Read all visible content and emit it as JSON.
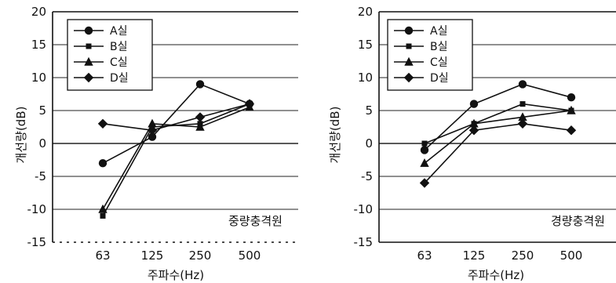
{
  "chart_data": [
    {
      "type": "line",
      "categories": [
        "63",
        "125",
        "250",
        "500"
      ],
      "ylim": [
        -15,
        20
      ],
      "yticks": [
        "20",
        "15",
        "10",
        "5",
        "0",
        "-5",
        "-10",
        "-15"
      ],
      "xlabel": "주파수(Hz)",
      "ylabel": "개선량(dB)",
      "annotation": "중량충격원",
      "grid": "horizontal",
      "legend_position": "top-left",
      "series": [
        {
          "name": "A실",
          "marker": "circle",
          "values": [
            -3,
            1,
            9,
            6
          ]
        },
        {
          "name": "B실",
          "marker": "square",
          "values": [
            -11,
            2.5,
            3,
            6
          ]
        },
        {
          "name": "C실",
          "marker": "triangle",
          "values": [
            -10,
            3,
            2.5,
            5.5
          ]
        },
        {
          "name": "D실",
          "marker": "diamond",
          "values": [
            3,
            2,
            4,
            6
          ]
        }
      ]
    },
    {
      "type": "line",
      "categories": [
        "63",
        "125",
        "250",
        "500"
      ],
      "ylim": [
        -15,
        20
      ],
      "yticks": [
        "20",
        "15",
        "10",
        "5",
        "0",
        "-5",
        "-10",
        "-15"
      ],
      "xlabel": "주파수(Hz)",
      "ylabel": "개선량(dB)",
      "annotation": "경량충격원",
      "grid": "horizontal",
      "legend_position": "top-left",
      "series": [
        {
          "name": "A실",
          "marker": "circle",
          "values": [
            -1,
            6,
            9,
            7
          ]
        },
        {
          "name": "B실",
          "marker": "square",
          "values": [
            0,
            3,
            6,
            5
          ]
        },
        {
          "name": "C실",
          "marker": "triangle",
          "values": [
            -3,
            3,
            4,
            5
          ]
        },
        {
          "name": "D실",
          "marker": "diamond",
          "values": [
            -6,
            2,
            3,
            2
          ]
        }
      ]
    }
  ]
}
